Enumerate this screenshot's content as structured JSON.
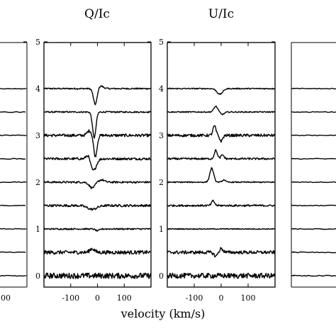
{
  "chart_data": [
    {
      "type": "line",
      "title": "",
      "xlabel": "",
      "ylabel": "",
      "x_ticks": [],
      "y_ticks": [],
      "partial": true,
      "series": []
    },
    {
      "type": "line",
      "title": "Q/Ic",
      "xlabel": "velocity (km/s)",
      "ylabel": "",
      "xlim": [
        -200,
        200
      ],
      "ylim": [
        -0.5,
        5
      ],
      "x_ticks": [
        "-100",
        "0",
        "100"
      ],
      "y_ticks": [
        "0",
        "1",
        "2",
        "3",
        "4",
        "5"
      ],
      "series": [
        {
          "offset": 4.0,
          "features": [
            {
              "v": -8,
              "amp": -0.35,
              "w": 10
            },
            {
              "v": 10,
              "amp": 0.06,
              "w": 15
            }
          ],
          "noise": 0.015
        },
        {
          "offset": 3.5,
          "features": [
            {
              "v": -12,
              "amp": -0.55,
              "w": 9
            }
          ],
          "noise": 0.015
        },
        {
          "offset": 3.0,
          "features": [
            {
              "v": -8,
              "amp": -0.45,
              "w": 9
            },
            {
              "v": -30,
              "amp": 0.1,
              "w": 12
            }
          ],
          "noise": 0.03
        },
        {
          "offset": 2.5,
          "features": [
            {
              "v": -15,
              "amp": -0.25,
              "w": 15
            },
            {
              "v": -35,
              "amp": 0.1,
              "w": 10
            }
          ],
          "noise": 0.025
        },
        {
          "offset": 2.0,
          "features": [
            {
              "v": -20,
              "amp": -0.12,
              "w": 15
            },
            {
              "v": 15,
              "amp": 0.05,
              "w": 15
            }
          ],
          "noise": 0.02
        },
        {
          "offset": 1.5,
          "features": [
            {
              "v": -20,
              "amp": -0.08,
              "w": 25
            }
          ],
          "noise": 0.025
        },
        {
          "offset": 1.0,
          "features": [
            {
              "v": 0,
              "amp": -0.04,
              "w": 10
            }
          ],
          "noise": 0.015
        },
        {
          "offset": 0.5,
          "features": [
            {
              "v": -20,
              "amp": 0.08,
              "w": 12
            }
          ],
          "noise": 0.04
        },
        {
          "offset": 0.0,
          "features": [],
          "noise": 0.06
        }
      ]
    },
    {
      "type": "line",
      "title": "U/Ic",
      "xlabel": "",
      "ylabel": "",
      "xlim": [
        -200,
        200
      ],
      "ylim": [
        -0.5,
        5
      ],
      "x_ticks": [
        "-100",
        "0",
        "100"
      ],
      "y_ticks": [
        "0",
        "1",
        "2",
        "3",
        "4",
        "5"
      ],
      "series": [
        {
          "offset": 4.0,
          "features": [
            {
              "v": -5,
              "amp": -0.12,
              "w": 15
            }
          ],
          "noise": 0.012
        },
        {
          "offset": 3.5,
          "features": [
            {
              "v": -20,
              "amp": 0.12,
              "w": 10
            },
            {
              "v": 5,
              "amp": -0.05,
              "w": 10
            }
          ],
          "noise": 0.012
        },
        {
          "offset": 3.0,
          "features": [
            {
              "v": -25,
              "amp": 0.2,
              "w": 8
            },
            {
              "v": 0,
              "amp": -0.12,
              "w": 8
            }
          ],
          "noise": 0.03
        },
        {
          "offset": 2.5,
          "features": [
            {
              "v": -20,
              "amp": 0.18,
              "w": 8
            },
            {
              "v": 5,
              "amp": 0.08,
              "w": 8
            }
          ],
          "noise": 0.02
        },
        {
          "offset": 2.0,
          "features": [
            {
              "v": -35,
              "amp": 0.3,
              "w": 10
            },
            {
              "v": 10,
              "amp": 0.05,
              "w": 8
            }
          ],
          "noise": 0.012
        },
        {
          "offset": 1.5,
          "features": [
            {
              "v": -30,
              "amp": 0.1,
              "w": 8
            }
          ],
          "noise": 0.02
        },
        {
          "offset": 1.0,
          "features": [],
          "noise": 0.01
        },
        {
          "offset": 0.5,
          "features": [
            {
              "v": -20,
              "amp": -0.08,
              "w": 10
            },
            {
              "v": 0,
              "amp": 0.08,
              "w": 10
            }
          ],
          "noise": 0.035
        },
        {
          "offset": 0.0,
          "features": [],
          "noise": 0.055
        }
      ]
    },
    {
      "type": "line",
      "title": "",
      "xlabel": "",
      "ylabel": "",
      "x_ticks": [],
      "y_ticks": [],
      "partial": true,
      "series": []
    }
  ],
  "left_partial_tick": "00"
}
